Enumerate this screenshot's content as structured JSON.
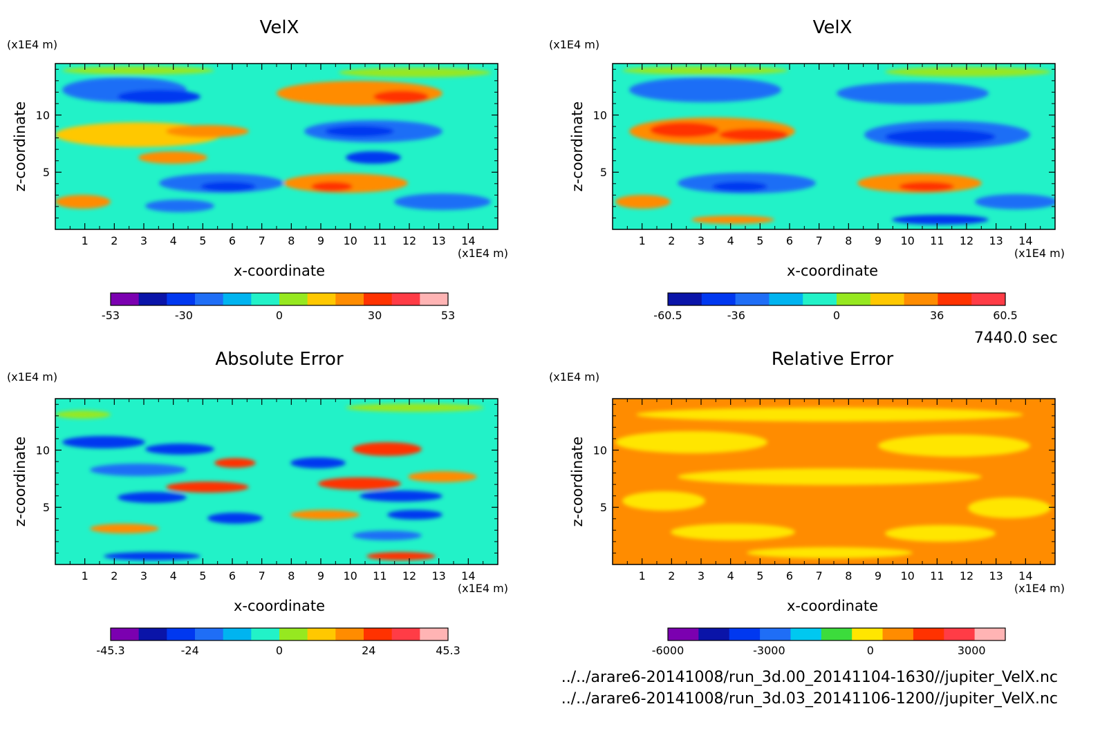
{
  "time_label": "7440.0 sec",
  "files": [
    "../../arare6-20141008/run_3d.00_20141104-1630//jupiter_VelX.nc",
    "../../arare6-20141008/run_3d.03_20141106-1200//jupiter_VelX.nc"
  ],
  "chart_data": [
    {
      "type": "heatmap",
      "title": "VelX",
      "xlabel": "x-coordinate",
      "ylabel": "z-coordinate",
      "x_unit": "(x1E4 m)",
      "y_unit": "(x1E4 m)",
      "xlim": [
        0,
        15
      ],
      "ylim": [
        0,
        14.5
      ],
      "xticks": [
        1,
        2,
        3,
        4,
        5,
        6,
        7,
        8,
        9,
        10,
        11,
        12,
        13,
        14
      ],
      "yticks": [
        5,
        10
      ],
      "colorbar": {
        "range": [
          -53,
          53
        ],
        "labels": [
          "-53",
          "-30",
          "0",
          "30",
          "53"
        ],
        "label_values": [
          -53,
          -30,
          0,
          30,
          53
        ],
        "colors": [
          "#7b00b0",
          "#0a14a8",
          "#0038f0",
          "#1f6ef6",
          "#00b4f0",
          "#22f2c8",
          "#96e820",
          "#ffc800",
          "#ff8c00",
          "#ff3200",
          "#ff3c46",
          "#ffb4b4"
        ]
      }
    },
    {
      "type": "heatmap",
      "title": "VelX",
      "xlabel": "x-coordinate",
      "ylabel": "z-coordinate",
      "x_unit": "(x1E4 m)",
      "y_unit": "(x1E4 m)",
      "xlim": [
        0,
        15
      ],
      "ylim": [
        0,
        14.5
      ],
      "xticks": [
        1,
        2,
        3,
        4,
        5,
        6,
        7,
        8,
        9,
        10,
        11,
        12,
        13,
        14
      ],
      "yticks": [
        5,
        10
      ],
      "colorbar": {
        "range": [
          -60.5,
          60.5
        ],
        "labels": [
          "-60.5",
          "-36",
          "0",
          "36",
          "60.5"
        ],
        "label_values": [
          -60.5,
          -36,
          0,
          36,
          60.5
        ],
        "colors": [
          "#0a14a8",
          "#0038f0",
          "#1f6ef6",
          "#00b4f0",
          "#22f2c8",
          "#96e820",
          "#ffc800",
          "#ff8c00",
          "#ff3200",
          "#ff3c46"
        ]
      }
    },
    {
      "type": "heatmap",
      "title": "Absolute Error",
      "xlabel": "x-coordinate",
      "ylabel": "z-coordinate",
      "x_unit": "(x1E4 m)",
      "y_unit": "(x1E4 m)",
      "xlim": [
        0,
        15
      ],
      "ylim": [
        0,
        14.5
      ],
      "xticks": [
        1,
        2,
        3,
        4,
        5,
        6,
        7,
        8,
        9,
        10,
        11,
        12,
        13,
        14
      ],
      "yticks": [
        5,
        10
      ],
      "colorbar": {
        "range": [
          -45.3,
          45.3
        ],
        "labels": [
          "-45.3",
          "-24",
          "0",
          "24",
          "45.3"
        ],
        "label_values": [
          -45.3,
          -24,
          0,
          24,
          45.3
        ],
        "colors": [
          "#7b00b0",
          "#0a14a8",
          "#0038f0",
          "#1f6ef6",
          "#00b4f0",
          "#22f2c8",
          "#96e820",
          "#ffc800",
          "#ff8c00",
          "#ff3200",
          "#ff3c46",
          "#ffb4b4"
        ]
      }
    },
    {
      "type": "heatmap",
      "title": "Relative Error",
      "xlabel": "x-coordinate",
      "ylabel": "z-coordinate",
      "x_unit": "(x1E4 m)",
      "y_unit": "(x1E4 m)",
      "xlim": [
        0,
        15
      ],
      "ylim": [
        0,
        14.5
      ],
      "xticks": [
        1,
        2,
        3,
        4,
        5,
        6,
        7,
        8,
        9,
        10,
        11,
        12,
        13,
        14
      ],
      "yticks": [
        5,
        10
      ],
      "colorbar": {
        "range": [
          -6000,
          4000
        ],
        "labels": [
          "-6000",
          "-3000",
          "0",
          "3000"
        ],
        "label_values": [
          -6000,
          -3000,
          0,
          3000
        ],
        "colors": [
          "#7b00b0",
          "#0a14a8",
          "#0038f0",
          "#1f6ef6",
          "#00c8f0",
          "#3cdc3c",
          "#ffe600",
          "#ff8c00",
          "#ff3200",
          "#ff3c46",
          "#ffb4b4"
        ]
      }
    }
  ]
}
